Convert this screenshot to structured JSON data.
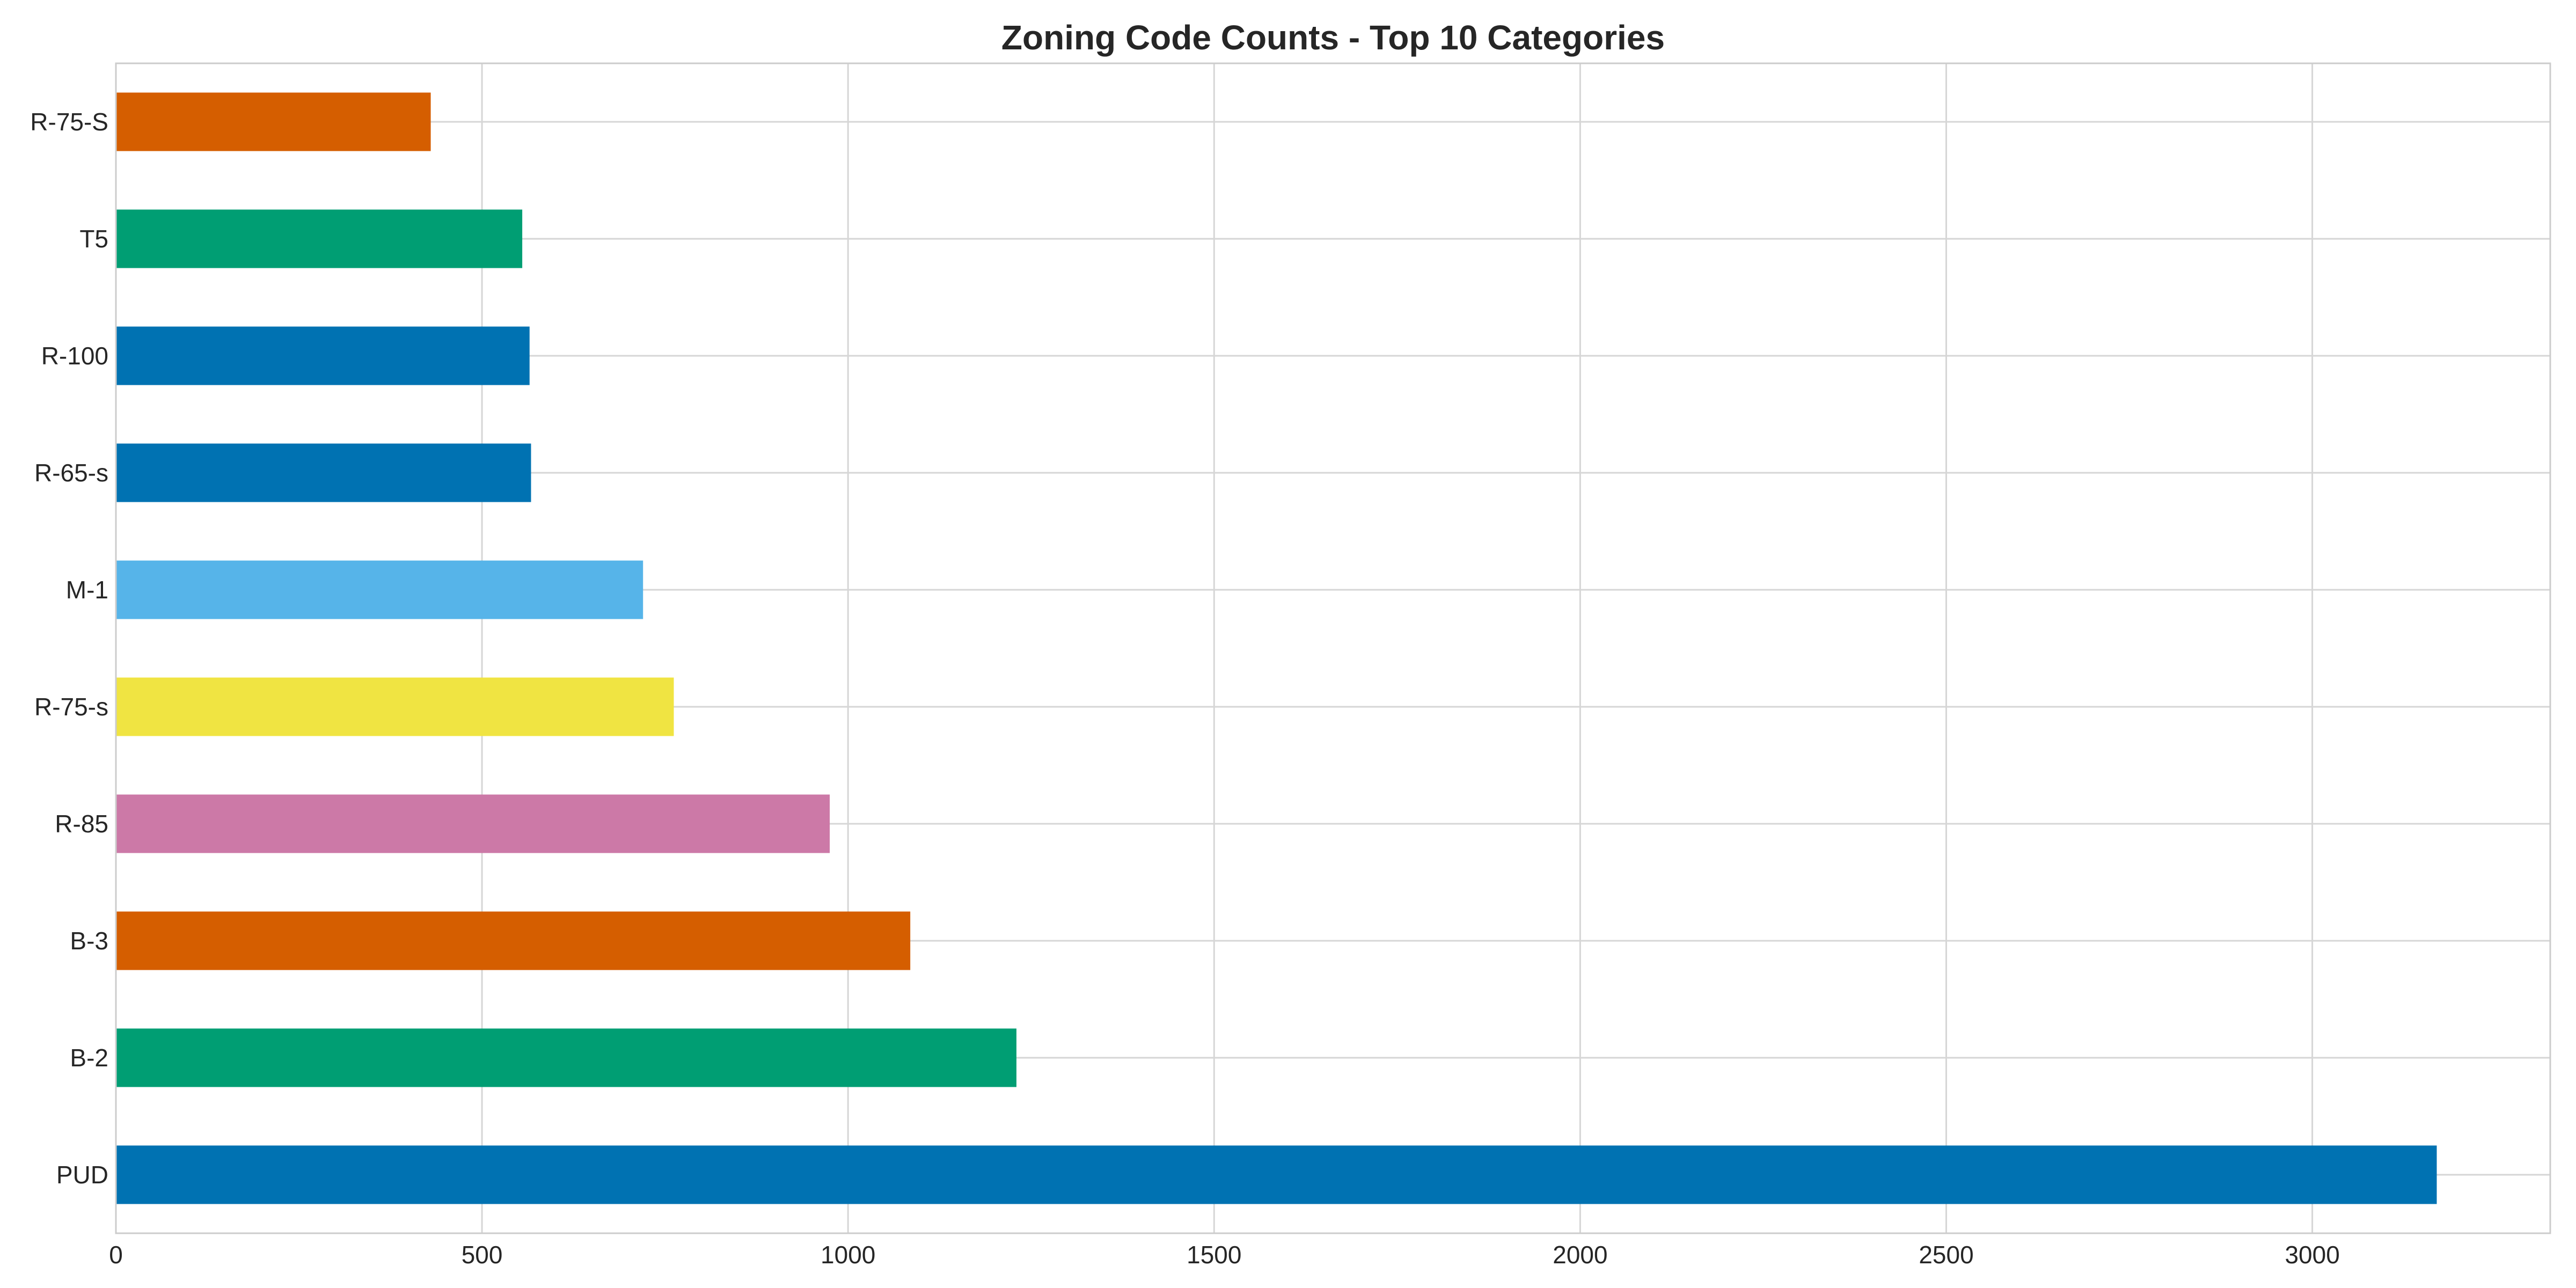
{
  "chart_data": {
    "type": "bar",
    "orientation": "horizontal",
    "title": "Zoning Code Counts - Top 10 Categories",
    "xlabel": "",
    "ylabel": "",
    "categories": [
      "PUD",
      "B-2",
      "B-3",
      "R-85",
      "R-75-s",
      "M-1",
      "R-65-s",
      "R-100",
      "T5",
      "R-75-S"
    ],
    "values": [
      3170,
      1230,
      1085,
      975,
      762,
      720,
      567,
      565,
      555,
      430
    ],
    "colors": [
      "#0072b2",
      "#009e73",
      "#d55e00",
      "#cc79a7",
      "#f0e442",
      "#56b4e9",
      "#0072b2",
      "#0072b2",
      "#009e73",
      "#d55e00"
    ],
    "xlim": [
      0,
      3325
    ],
    "xticks": [
      0,
      500,
      1000,
      1500,
      2000,
      2500,
      3000
    ],
    "grid": true,
    "legend": "none"
  }
}
